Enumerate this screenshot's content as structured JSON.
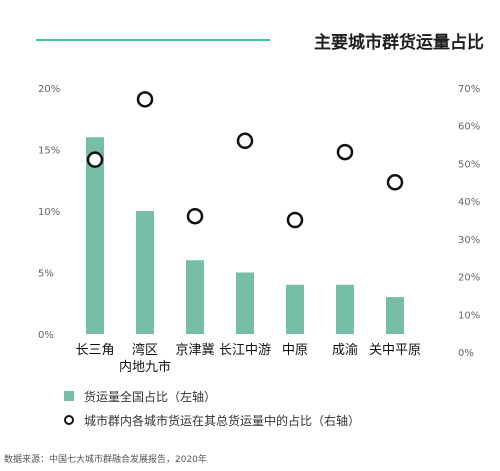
{
  "title": "主要城市群货运量占比",
  "chart_data": {
    "type": "bar",
    "categories": [
      "长三角",
      "湾区\n内地九市",
      "京津冀",
      "长江中游",
      "中原",
      "成渝",
      "关中平原"
    ],
    "series": [
      {
        "name": "货运量全国占比（左轴）",
        "type": "bar",
        "axis": "left",
        "values": [
          16,
          10,
          6,
          5,
          4,
          4,
          3
        ]
      },
      {
        "name": "城市群内各城市货运在其总货运量中的占比（右轴）",
        "type": "scatter",
        "axis": "right",
        "values": [
          51,
          67,
          36,
          56,
          35,
          53,
          45
        ]
      }
    ],
    "left_axis": {
      "ylim": [
        0,
        20
      ],
      "ticks": [
        "0%",
        "5%",
        "10%",
        "15%",
        "20%"
      ],
      "tick_values": [
        0,
        5,
        10,
        15,
        20
      ]
    },
    "right_axis": {
      "ylim": [
        0,
        70
      ],
      "ticks": [
        "0%",
        "10%",
        "20%",
        "30%",
        "40%",
        "50%",
        "60%",
        "70%"
      ],
      "tick_values": [
        0,
        10,
        20,
        30,
        40,
        50,
        60,
        70
      ]
    },
    "grid": false,
    "legend_position": "bottom-left"
  },
  "legend": {
    "bar_label": "货运量全国占比（左轴）",
    "dot_label": "城市群内各城市货运在其总货运量中的占比（右轴）"
  },
  "source": "数据来源：中国七大城市群融合发展报告，2020年",
  "colors": {
    "bar": "#76bfa6",
    "dot_stroke": "#111111",
    "accent": "#3cc8a4"
  }
}
